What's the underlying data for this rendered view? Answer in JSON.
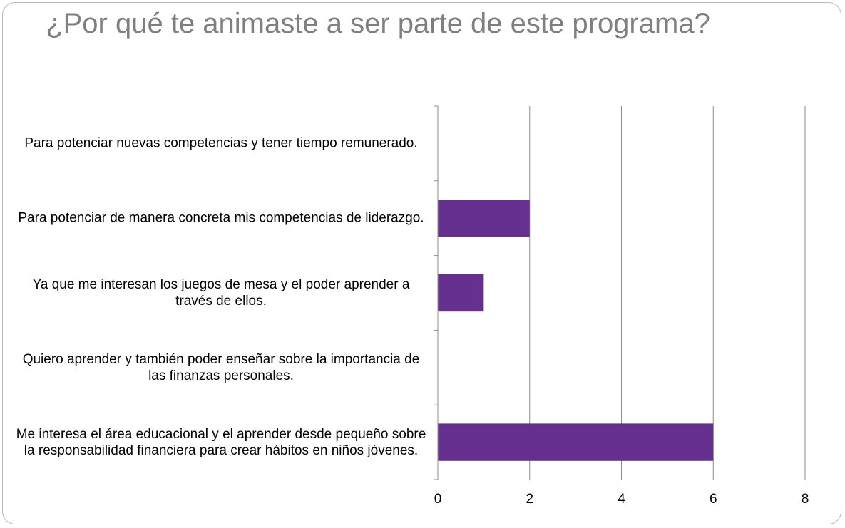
{
  "chart_data": {
    "type": "bar",
    "orientation": "horizontal",
    "title": "¿Por qué te animaste a ser parte de este programa?",
    "categories": [
      "Para potenciar nuevas competencias y tener tiempo remunerado.",
      "Para potenciar de manera concreta mis competencias de liderazgo.",
      "Ya que me interesan los juegos de mesa y el poder aprender a través de ellos.",
      "Quiero aprender  y también poder enseñar sobre la importancia de las finanzas personales.",
      "Me interesa el área educacional y el aprender desde pequeño sobre la responsabilidad financiera para crear hábitos en niños jóvenes."
    ],
    "values": [
      0,
      2,
      1,
      0,
      6
    ],
    "xlim": [
      0,
      8
    ],
    "xticks": [
      "0",
      "2",
      "4",
      "6",
      "8"
    ],
    "grid": true,
    "legend": "none",
    "colors": {
      "bar": "#66308f",
      "grid": "#8c8c8c",
      "axis": "#8c8c8c",
      "title": "#7f7f7f"
    }
  }
}
